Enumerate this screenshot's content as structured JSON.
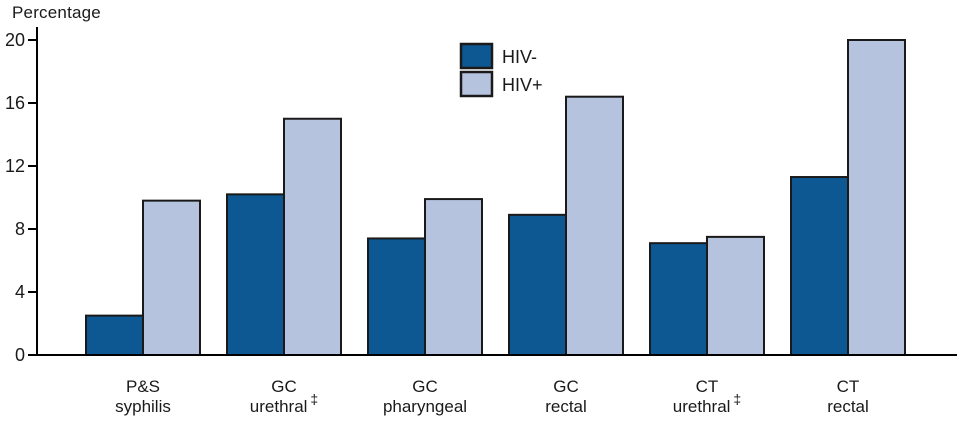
{
  "chart_data": {
    "type": "bar",
    "title": "Percentage",
    "ylabel": "Percentage",
    "xlabel": "",
    "ylim": [
      0,
      20
    ],
    "yticks": [
      0,
      4,
      8,
      12,
      16,
      20
    ],
    "grid": false,
    "legend_position": "top-center",
    "axis_color": "#000000",
    "bar_outline_color": "#1a1a1a",
    "categories": [
      {
        "lines": [
          "P&S",
          "syphilis"
        ],
        "footnote": ""
      },
      {
        "lines": [
          "GC",
          "urethral"
        ],
        "footnote": "‡"
      },
      {
        "lines": [
          "GC",
          "pharyngeal"
        ],
        "footnote": ""
      },
      {
        "lines": [
          "GC",
          "rectal"
        ],
        "footnote": ""
      },
      {
        "lines": [
          "CT",
          "urethral"
        ],
        "footnote": "‡"
      },
      {
        "lines": [
          "CT",
          "rectal"
        ],
        "footnote": ""
      }
    ],
    "series": [
      {
        "name": "HIV-",
        "color": "#0d5893",
        "values": [
          2.5,
          10.2,
          7.4,
          8.9,
          7.1,
          11.3
        ]
      },
      {
        "name": "HIV+",
        "color": "#b6c3df",
        "values": [
          9.8,
          15.0,
          9.9,
          16.4,
          7.5,
          20.0
        ]
      }
    ]
  }
}
